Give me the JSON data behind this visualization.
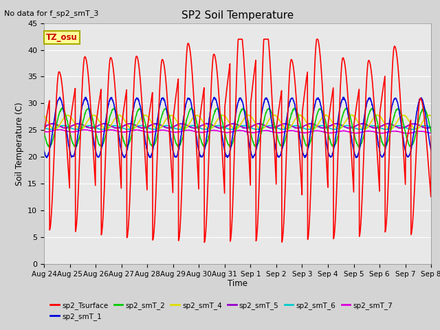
{
  "title": "SP2 Soil Temperature",
  "ylabel": "Soil Temperature (C)",
  "xlabel": "Time",
  "no_data_text": "No data for f_sp2_smT_3",
  "tz_label": "TZ_osu",
  "ylim": [
    0,
    45
  ],
  "xlim": [
    0,
    15
  ],
  "background_color": "#d4d4d4",
  "plot_bg_color": "#e8e8e8",
  "series": {
    "sp2_Tsurface": {
      "color": "#ff0000",
      "lw": 1.2
    },
    "sp2_smT_1": {
      "color": "#0000dd",
      "lw": 1.2
    },
    "sp2_smT_2": {
      "color": "#00cc00",
      "lw": 1.2
    },
    "sp2_smT_4": {
      "color": "#dddd00",
      "lw": 1.2
    },
    "sp2_smT_5": {
      "color": "#9900cc",
      "lw": 1.2
    },
    "sp2_smT_6": {
      "color": "#00cccc",
      "lw": 1.2
    },
    "sp2_smT_7": {
      "color": "#dd00dd",
      "lw": 1.2
    }
  },
  "tick_labels": [
    "Aug 24",
    "Aug 25",
    "Aug 26",
    "Aug 27",
    "Aug 28",
    "Aug 29",
    "Aug 30",
    "Aug 31",
    "Sep 1",
    "Sep 2",
    "Sep 3",
    "Sep 4",
    "Sep 5",
    "Sep 6",
    "Sep 7",
    "Sep 8"
  ],
  "yticks": [
    0,
    5,
    10,
    15,
    20,
    25,
    30,
    35,
    40,
    45
  ],
  "figsize": [
    6.4,
    4.8
  ],
  "dpi": 100
}
